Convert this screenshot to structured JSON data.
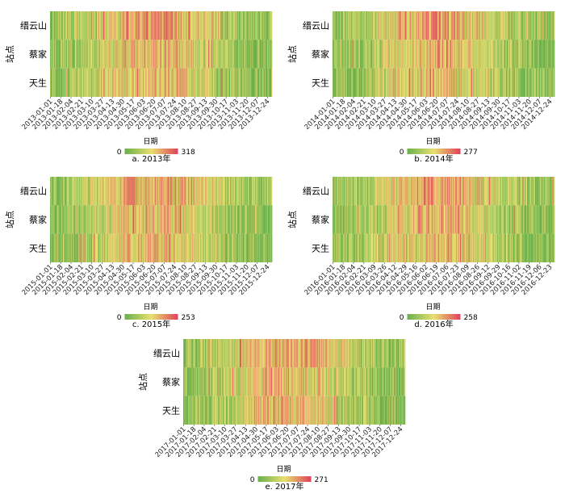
{
  "chart_data": [
    {
      "type": "heatmap",
      "caption": "a. 2013年",
      "xlabel": "日期",
      "ylabel": "站点",
      "stations": [
        "缙云山",
        "蔡家",
        "天生"
      ],
      "x_ticks": [
        "2013-01-01",
        "2013-01-18",
        "2013-02-04",
        "2013-02-21",
        "2013-03-10",
        "2013-03-27",
        "2013-04-13",
        "2013-04-30",
        "2013-05-17",
        "2013-06-03",
        "2013-06-20",
        "2013-07-07",
        "2013-07-24",
        "2013-08-10",
        "2013-08-27",
        "2013-09-13",
        "2013-09-30",
        "2013-10-17",
        "2013-11-03",
        "2013-11-20",
        "2013-12-07",
        "2013-12-24"
      ],
      "colorbar": {
        "min": "0",
        "max": "318",
        "colors": [
          "#6ab04c",
          "#e8e070",
          "#e0405a"
        ]
      }
    },
    {
      "type": "heatmap",
      "caption": "b. 2014年",
      "xlabel": "日期",
      "ylabel": "站点",
      "stations": [
        "缙云山",
        "蔡家",
        "天生"
      ],
      "x_ticks": [
        "2014-01-01",
        "2014-01-18",
        "2014-02-04",
        "2014-02-21",
        "2014-03-10",
        "2014-03-27",
        "2014-04-13",
        "2014-04-30",
        "2014-05-17",
        "2014-06-03",
        "2014-06-20",
        "2014-07-07",
        "2014-07-24",
        "2014-08-10",
        "2014-08-27",
        "2014-09-13",
        "2014-09-30",
        "2014-10-17",
        "2014-11-03",
        "2014-11-20",
        "2014-12-07",
        "2014-12-24"
      ],
      "colorbar": {
        "min": "0",
        "max": "277",
        "colors": [
          "#6ab04c",
          "#e8e070",
          "#e0405a"
        ]
      }
    },
    {
      "type": "heatmap",
      "caption": "c. 2015年",
      "xlabel": "日期",
      "ylabel": "站点",
      "stations": [
        "缙云山",
        "蔡家",
        "天生"
      ],
      "x_ticks": [
        "2015-01-01",
        "2015-01-18",
        "2015-02-04",
        "2015-02-21",
        "2015-03-10",
        "2015-03-27",
        "2015-04-13",
        "2015-04-30",
        "2015-05-17",
        "2015-06-03",
        "2015-06-20",
        "2015-07-07",
        "2015-07-24",
        "2015-08-10",
        "2015-08-27",
        "2015-09-13",
        "2015-09-30",
        "2015-10-17",
        "2015-11-03",
        "2015-11-20",
        "2015-12-07",
        "2015-12-24"
      ],
      "colorbar": {
        "min": "0",
        "max": "253",
        "colors": [
          "#6ab04c",
          "#e8e070",
          "#e0405a"
        ]
      }
    },
    {
      "type": "heatmap",
      "caption": "d. 2016年",
      "xlabel": "日期",
      "ylabel": "站点",
      "stations": [
        "缙云山",
        "蔡家",
        "天生"
      ],
      "x_ticks": [
        "2016-01-01",
        "2016-01-18",
        "2016-02-04",
        "2016-02-21",
        "2016-03-09",
        "2016-03-26",
        "2016-04-12",
        "2016-04-29",
        "2016-05-16",
        "2016-06-02",
        "2016-06-19",
        "2016-07-06",
        "2016-07-23",
        "2016-08-09",
        "2016-08-26",
        "2016-09-12",
        "2016-09-29",
        "2016-10-16",
        "2016-11-02",
        "2016-11-19",
        "2016-12-06",
        "2016-12-23"
      ],
      "colorbar": {
        "min": "0",
        "max": "258",
        "colors": [
          "#6ab04c",
          "#e8e070",
          "#e0405a"
        ]
      }
    },
    {
      "type": "heatmap",
      "caption": "e. 2017年",
      "xlabel": "日期",
      "ylabel": "站点",
      "stations": [
        "缙云山",
        "蔡家",
        "天生"
      ],
      "x_ticks": [
        "2017-01-01",
        "2017-01-18",
        "2017-02-04",
        "2017-02-21",
        "2017-03-10",
        "2017-03-27",
        "2017-04-13",
        "2017-04-30",
        "2017-05-17",
        "2017-06-03",
        "2017-06-20",
        "2017-07-07",
        "2017-07-24",
        "2017-08-10",
        "2017-08-27",
        "2017-09-13",
        "2017-09-30",
        "2017-10-17",
        "2017-11-03",
        "2017-11-20",
        "2017-12-07",
        "2017-12-24"
      ],
      "colorbar": {
        "min": "0",
        "max": "271",
        "colors": [
          "#6ab04c",
          "#e8e070",
          "#e0405a"
        ]
      }
    }
  ]
}
